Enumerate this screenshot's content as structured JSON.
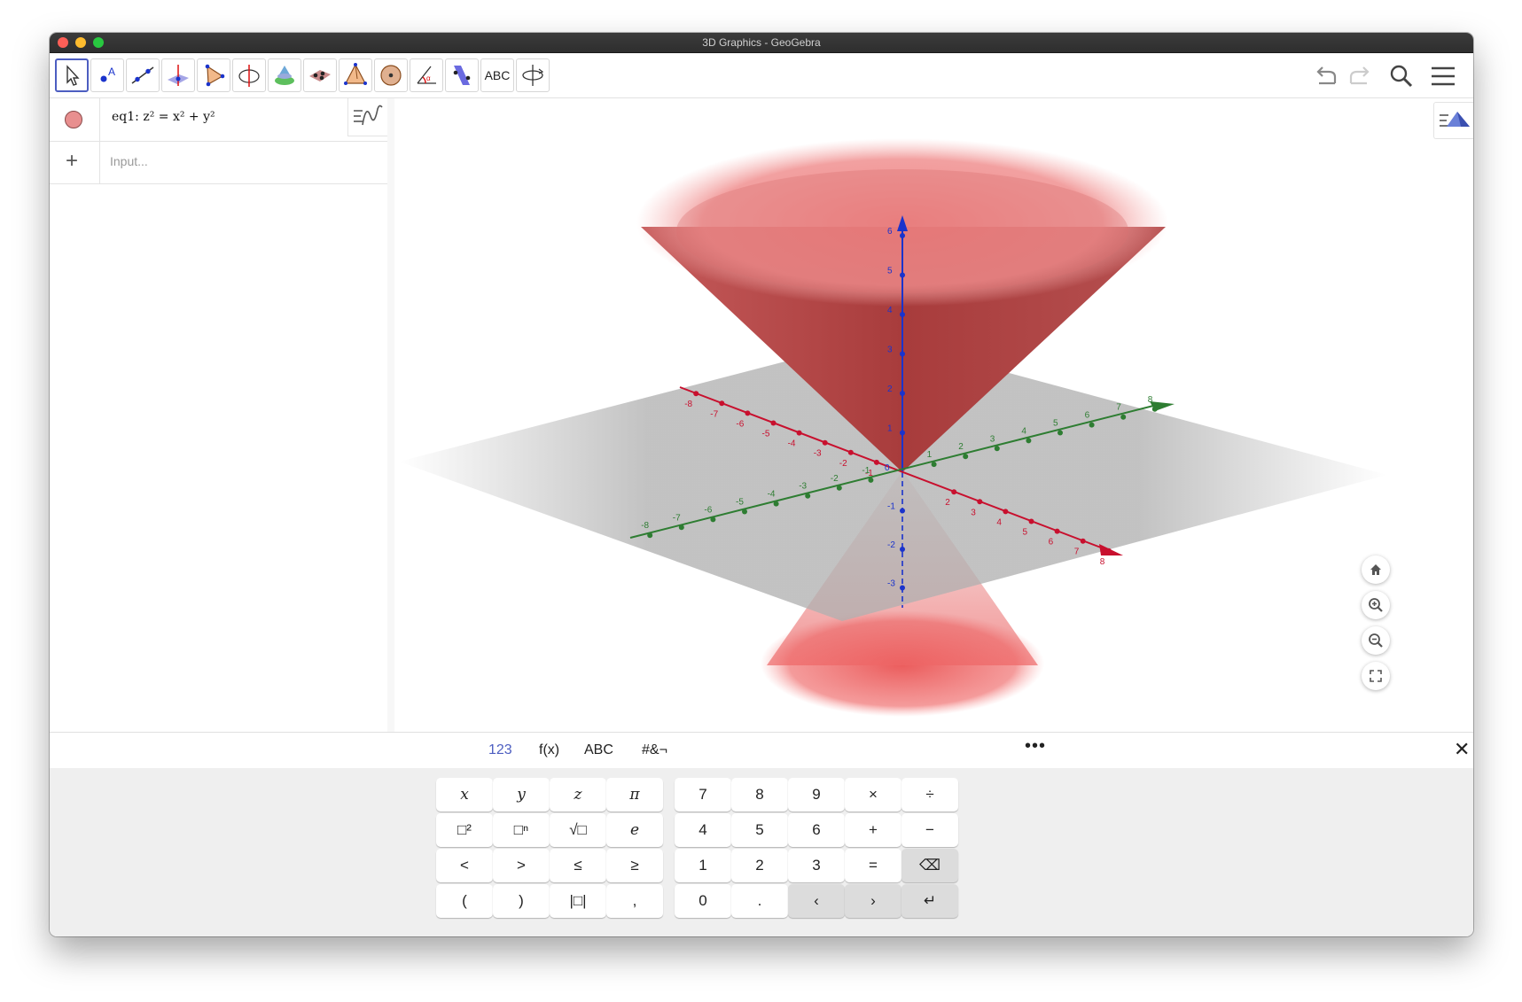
{
  "window": {
    "title": "3D Graphics - GeoGebra"
  },
  "toolbar": {
    "tools": [
      {
        "name": "move-tool",
        "icon": "cursor-arrow-icon"
      },
      {
        "name": "point-tool",
        "icon": "point-icon"
      },
      {
        "name": "line-tool",
        "icon": "line-through-two-points-icon"
      },
      {
        "name": "perpendicular-line-tool",
        "icon": "perpendicular-line-icon"
      },
      {
        "name": "polygon-tool",
        "icon": "triangle-polygon-icon"
      },
      {
        "name": "circle-axis-tool",
        "icon": "circle-with-axis-icon"
      },
      {
        "name": "intersect-surfaces-tool",
        "icon": "intersect-surfaces-icon"
      },
      {
        "name": "plane-three-points-tool",
        "icon": "plane-three-points-icon"
      },
      {
        "name": "pyramid-tool",
        "icon": "pyramid-icon"
      },
      {
        "name": "sphere-tool",
        "icon": "sphere-icon"
      },
      {
        "name": "angle-tool",
        "icon": "angle-icon"
      },
      {
        "name": "reflect-tool",
        "icon": "reflect-about-plane-icon"
      },
      {
        "name": "text-tool",
        "label": "ABC"
      },
      {
        "name": "rotate-view-tool",
        "icon": "rotate-3d-view-icon"
      }
    ],
    "right_icons": [
      "undo-icon",
      "redo-icon",
      "search-icon",
      "menu-icon"
    ]
  },
  "algebra": {
    "items": [
      {
        "label": "eq1: z² = x² + y²",
        "color": "#e88f8f"
      }
    ],
    "input_placeholder": "Input..."
  },
  "graphics3d": {
    "axis_colors": {
      "x": "#c8102e",
      "y": "#2e7d32",
      "z": "#1a33cc"
    },
    "x_ticks": [
      "-8",
      "-7",
      "-6",
      "-5",
      "-4",
      "-3",
      "-2",
      "-1",
      "2",
      "3",
      "4",
      "5",
      "6",
      "7",
      "8"
    ],
    "y_ticks": [
      "-8",
      "-7",
      "-6",
      "-5",
      "-4",
      "-3",
      "-2",
      "-1",
      "1",
      "2",
      "3",
      "4",
      "5",
      "6",
      "7",
      "8"
    ],
    "z_ticks": [
      "-3",
      "-2",
      "-1",
      "1",
      "2",
      "3",
      "4",
      "5",
      "6"
    ],
    "origin_label": "0",
    "surface_color": "#e05a5a",
    "view_buttons": [
      "home-icon",
      "zoom-in-icon",
      "zoom-out-icon",
      "fullscreen-icon"
    ]
  },
  "keyboard": {
    "tabs": [
      "123",
      "f(x)",
      "ABC",
      "#&¬"
    ],
    "active_tab": "123",
    "more_label": "•••",
    "close_label": "✕",
    "left_keys": [
      [
        "x",
        "y",
        "z",
        "π"
      ],
      [
        "□²",
        "□ⁿ",
        "√□",
        "e"
      ],
      [
        "<",
        ">",
        "≤",
        "≥"
      ],
      [
        "(",
        ")",
        "|□|",
        ","
      ]
    ],
    "right_keys": [
      [
        "7",
        "8",
        "9",
        "×",
        "÷"
      ],
      [
        "4",
        "5",
        "6",
        "+",
        "−"
      ],
      [
        "1",
        "2",
        "3",
        "=",
        "⌫"
      ],
      [
        "0",
        ".",
        "‹",
        "›",
        "↵"
      ]
    ]
  }
}
